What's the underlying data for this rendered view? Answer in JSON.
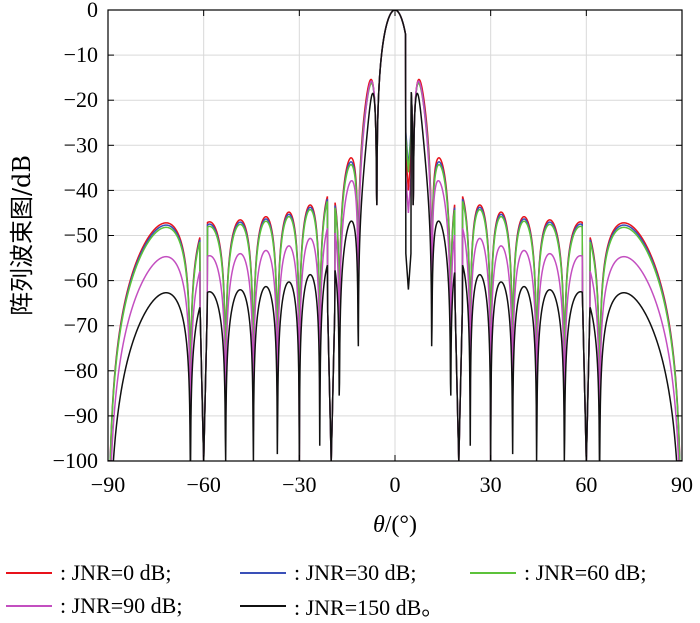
{
  "chart_data": {
    "type": "line",
    "xlabel_var": "θ",
    "xlabel_unit": "/(°)",
    "ylabel": "阵列波束图/dB",
    "xlim": [
      -90,
      90
    ],
    "ylim": [
      -100,
      0
    ],
    "xticks": [
      -90,
      -60,
      -30,
      0,
      30,
      60,
      90
    ],
    "yticks": [
      0,
      -10,
      -20,
      -30,
      -40,
      -50,
      -60,
      -70,
      -80,
      -90,
      -100
    ],
    "xtick_labels": [
      "−90",
      "−60",
      "−30",
      "0",
      "30",
      "60",
      "90"
    ],
    "ytick_labels": [
      "0",
      "−10",
      "−20",
      "−30",
      "−40",
      "−50",
      "−60",
      "−70",
      "−80",
      "−90",
      "−100"
    ],
    "grid": true,
    "legend_placement": "bottom",
    "array_elements": 20,
    "series": [
      {
        "name": ": JNR=0 dB;",
        "color": "#e8121b",
        "sidelobe_db": -34.5,
        "near_db": -10.5,
        "dip_db": -40
      },
      {
        "name": ": JNR=30 dB;",
        "color": "#3a50b8",
        "sidelobe_db": -35.0,
        "near_db": -12.5,
        "dip_db": -35
      },
      {
        "name": ": JNR=60 dB;",
        "color": "#5cc23a",
        "sidelobe_db": -35.5,
        "near_db": -13.5,
        "dip_db": -36
      },
      {
        "name": ": JNR=90 dB;",
        "color": "#c34fc0",
        "sidelobe_db": -42.0,
        "near_db": -9.0,
        "dip_db": -45
      },
      {
        "name": ": JNR=150 dB。",
        "color": "#111111",
        "sidelobe_db": -50.0,
        "near_db": -20.5,
        "dip_db": -62
      }
    ],
    "deep_nulls_deg": [
      -60,
      -20,
      20,
      60
    ]
  }
}
